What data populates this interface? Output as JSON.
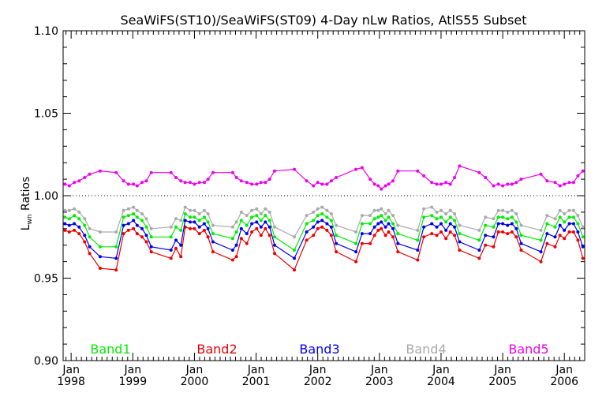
{
  "chart_data": {
    "type": "line",
    "title": "SeaWiFS(ST10)/SeaWiFS(ST09) 4-Day nLw Ratios, AtlS55 Subset",
    "ylabel_main": "L",
    "ylabel_sub": "wn",
    "ylabel_rest": " Ratios",
    "ylim": [
      0.9,
      1.1
    ],
    "xlim": [
      1997.87,
      2006.33
    ],
    "yticks": [
      0.9,
      0.95,
      1.0,
      1.05,
      1.1
    ],
    "ytick_labels": [
      "0.90",
      "0.95",
      "1.00",
      "1.05",
      "1.10"
    ],
    "xticks": [
      {
        "x": 1998.0,
        "month": "Jan",
        "year": "1998"
      },
      {
        "x": 1999.0,
        "month": "Jan",
        "year": "1999"
      },
      {
        "x": 2000.0,
        "month": "Jan",
        "year": "2000"
      },
      {
        "x": 2001.0,
        "month": "Jan",
        "year": "2001"
      },
      {
        "x": 2002.0,
        "month": "Jan",
        "year": "2002"
      },
      {
        "x": 2003.0,
        "month": "Jan",
        "year": "2003"
      },
      {
        "x": 2004.0,
        "month": "Jan",
        "year": "2004"
      },
      {
        "x": 2005.0,
        "month": "Jan",
        "year": "2005"
      },
      {
        "x": 2006.0,
        "month": "Jan",
        "year": "2006"
      }
    ],
    "reference_line": 1.0,
    "x": [
      1997.9,
      1997.97,
      1998.05,
      1998.13,
      1998.22,
      1998.3,
      1998.47,
      1998.73,
      1998.85,
      1998.93,
      1999.01,
      1999.07,
      1999.15,
      1999.22,
      1999.3,
      1999.62,
      1999.7,
      1999.78,
      1999.85,
      1999.93,
      2000.0,
      2000.08,
      2000.16,
      2000.22,
      2000.3,
      2000.62,
      2000.68,
      2000.76,
      2000.85,
      2000.93,
      2001.01,
      2001.08,
      2001.15,
      2001.22,
      2001.3,
      2001.62,
      2001.82,
      2001.93,
      2002.0,
      2002.07,
      2002.15,
      2002.22,
      2002.3,
      2002.62,
      2002.72,
      2002.85,
      2002.92,
      2002.98,
      2003.03,
      2003.1,
      2003.15,
      2003.22,
      2003.3,
      2003.62,
      2003.72,
      2003.85,
      2003.93,
      2004.0,
      2004.08,
      2004.15,
      2004.22,
      2004.3,
      2004.62,
      2004.72,
      2004.85,
      2004.93,
      2005.0,
      2005.08,
      2005.15,
      2005.22,
      2005.3,
      2005.62,
      2005.72,
      2005.85,
      2005.93,
      2006.0,
      2006.08,
      2006.15,
      2006.22,
      2006.3
    ],
    "series": [
      {
        "name": "Band1",
        "color": "#00ee00",
        "values": [
          0.987,
          0.986,
          0.988,
          0.986,
          0.982,
          0.975,
          0.969,
          0.969,
          0.987,
          0.988,
          0.989,
          0.987,
          0.985,
          0.981,
          0.975,
          0.975,
          0.981,
          0.979,
          0.989,
          0.987,
          0.987,
          0.985,
          0.987,
          0.984,
          0.977,
          0.974,
          0.978,
          0.985,
          0.982,
          0.987,
          0.988,
          0.985,
          0.988,
          0.985,
          0.975,
          0.967,
          0.983,
          0.985,
          0.988,
          0.989,
          0.987,
          0.985,
          0.976,
          0.971,
          0.983,
          0.983,
          0.986,
          0.987,
          0.988,
          0.985,
          0.987,
          0.983,
          0.977,
          0.973,
          0.987,
          0.988,
          0.986,
          0.987,
          0.984,
          0.987,
          0.985,
          0.977,
          0.973,
          0.982,
          0.981,
          0.987,
          0.987,
          0.986,
          0.987,
          0.984,
          0.976,
          0.973,
          0.983,
          0.981,
          0.987,
          0.984,
          0.987,
          0.987,
          0.983,
          0.975
        ]
      },
      {
        "name": "Band2",
        "color": "#ee0000",
        "values": [
          0.979,
          0.978,
          0.979,
          0.977,
          0.972,
          0.965,
          0.956,
          0.955,
          0.977,
          0.979,
          0.98,
          0.977,
          0.975,
          0.972,
          0.966,
          0.962,
          0.968,
          0.963,
          0.981,
          0.98,
          0.98,
          0.977,
          0.979,
          0.975,
          0.966,
          0.961,
          0.963,
          0.974,
          0.971,
          0.978,
          0.98,
          0.976,
          0.98,
          0.976,
          0.965,
          0.955,
          0.973,
          0.976,
          0.98,
          0.981,
          0.979,
          0.976,
          0.966,
          0.96,
          0.971,
          0.971,
          0.976,
          0.979,
          0.98,
          0.976,
          0.978,
          0.975,
          0.966,
          0.961,
          0.975,
          0.977,
          0.976,
          0.978,
          0.974,
          0.978,
          0.976,
          0.967,
          0.962,
          0.97,
          0.969,
          0.978,
          0.978,
          0.977,
          0.978,
          0.975,
          0.967,
          0.96,
          0.971,
          0.969,
          0.976,
          0.974,
          0.978,
          0.978,
          0.973,
          0.962
        ]
      },
      {
        "name": "Band3",
        "color": "#0000ee",
        "values": [
          0.983,
          0.982,
          0.983,
          0.981,
          0.976,
          0.969,
          0.963,
          0.962,
          0.982,
          0.983,
          0.985,
          0.982,
          0.98,
          0.976,
          0.969,
          0.967,
          0.973,
          0.97,
          0.985,
          0.984,
          0.984,
          0.981,
          0.983,
          0.98,
          0.972,
          0.967,
          0.97,
          0.98,
          0.977,
          0.983,
          0.984,
          0.981,
          0.984,
          0.981,
          0.97,
          0.962,
          0.978,
          0.981,
          0.984,
          0.985,
          0.983,
          0.981,
          0.971,
          0.966,
          0.977,
          0.977,
          0.981,
          0.983,
          0.984,
          0.981,
          0.983,
          0.98,
          0.971,
          0.967,
          0.981,
          0.983,
          0.981,
          0.983,
          0.979,
          0.983,
          0.981,
          0.972,
          0.967,
          0.976,
          0.975,
          0.983,
          0.983,
          0.982,
          0.983,
          0.98,
          0.971,
          0.966,
          0.977,
          0.975,
          0.982,
          0.979,
          0.983,
          0.983,
          0.978,
          0.969
        ]
      },
      {
        "name": "Band4",
        "color": "#aaaaaa",
        "values": [
          0.991,
          0.991,
          0.992,
          0.99,
          0.986,
          0.98,
          0.978,
          0.978,
          0.991,
          0.992,
          0.993,
          0.991,
          0.989,
          0.986,
          0.98,
          0.981,
          0.986,
          0.985,
          0.993,
          0.991,
          0.991,
          0.989,
          0.991,
          0.989,
          0.982,
          0.981,
          0.984,
          0.99,
          0.988,
          0.991,
          0.992,
          0.989,
          0.992,
          0.99,
          0.981,
          0.975,
          0.988,
          0.99,
          0.992,
          0.993,
          0.991,
          0.989,
          0.982,
          0.978,
          0.988,
          0.988,
          0.991,
          0.991,
          0.992,
          0.989,
          0.991,
          0.988,
          0.982,
          0.979,
          0.992,
          0.993,
          0.99,
          0.991,
          0.989,
          0.991,
          0.989,
          0.982,
          0.979,
          0.987,
          0.986,
          0.991,
          0.991,
          0.99,
          0.991,
          0.989,
          0.982,
          0.979,
          0.988,
          0.986,
          0.991,
          0.989,
          0.991,
          0.991,
          0.988,
          0.981
        ]
      },
      {
        "name": "Band5",
        "color": "#ee00ee",
        "values": [
          1.007,
          1.006,
          1.008,
          1.009,
          1.011,
          1.013,
          1.015,
          1.014,
          1.009,
          1.007,
          1.007,
          1.006,
          1.008,
          1.009,
          1.014,
          1.014,
          1.011,
          1.009,
          1.008,
          1.008,
          1.007,
          1.008,
          1.008,
          1.01,
          1.014,
          1.014,
          1.011,
          1.009,
          1.008,
          1.007,
          1.007,
          1.008,
          1.008,
          1.01,
          1.015,
          1.016,
          1.009,
          1.006,
          1.008,
          1.007,
          1.007,
          1.009,
          1.011,
          1.016,
          1.017,
          1.01,
          1.007,
          1.006,
          1.004,
          1.006,
          1.007,
          1.009,
          1.015,
          1.015,
          1.012,
          1.008,
          1.007,
          1.007,
          1.008,
          1.007,
          1.011,
          1.018,
          1.014,
          1.011,
          1.006,
          1.007,
          1.006,
          1.007,
          1.007,
          1.008,
          1.01,
          1.013,
          1.009,
          1.008,
          1.006,
          1.007,
          1.008,
          1.008,
          1.012,
          1.015
        ]
      }
    ],
    "legend": [
      "Band1",
      "Band2",
      "Band3",
      "Band4",
      "Band5"
    ],
    "legend_placement": "bottom, inside plot",
    "grid": false
  }
}
